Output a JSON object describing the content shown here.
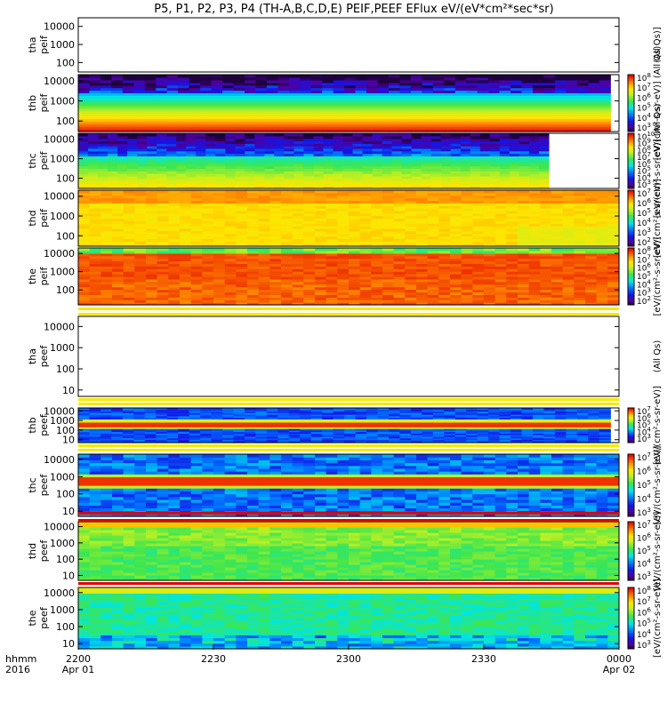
{
  "chart_data": {
    "type": "heatmap",
    "title": "P5, P1, P2, P3, P4 (TH-A,B,C,D,E) PEIF,PEEF EFlux eV/(eV*cm²*sec*sr)",
    "x_ticks": [
      "2200",
      "2230",
      "2300",
      "2330",
      "0000"
    ],
    "x_dates": [
      "Apr 01",
      "",
      "",
      "",
      "Apr 02"
    ],
    "x_axis_labels": [
      "hhmm",
      "2016"
    ],
    "panels": [
      {
        "label1": "tha",
        "label2": "peif",
        "yticks": [
          "10000",
          "1000",
          "100"
        ],
        "ymin": 30,
        "ymax": 30000,
        "data_end": 0.0,
        "profile": "empty",
        "cb_ticks": [],
        "cb_label": "(All Qs)]"
      },
      {
        "label1": "thb",
        "label2": "peif",
        "yticks": [
          "10000",
          "1000",
          "100"
        ],
        "ymin": 30,
        "ymax": 20000,
        "data_end": 0.984,
        "profile": "thb_peif",
        "cb_ticks": [
          "10^8",
          "10^7",
          "10^6",
          "10^5",
          "10^4",
          "10^3"
        ],
        "cb_label": "[eV/(cm²-s-sr-eV)] (All Qs)"
      },
      {
        "label1": "thc",
        "label2": "peif",
        "yticks": [
          "10000",
          "1000",
          "100"
        ],
        "ymin": 30,
        "ymax": 20000,
        "data_end": 0.87,
        "profile": "thc_peif",
        "cb_ticks": [
          "10^10",
          "10^9",
          "10^8",
          "10^7",
          "10^6",
          "10^5",
          "10^4",
          "10^3"
        ],
        "cb_label": "[eV/(cm²-s-sr-eV)] (All Qs)"
      },
      {
        "label1": "thd",
        "label2": "peif",
        "yticks": [
          "10000",
          "1000",
          "100"
        ],
        "ymin": 30,
        "ymax": 20000,
        "data_end": 1.0,
        "profile": "thd_peif",
        "cb_ticks": [
          "10^7",
          "10^6",
          "10^5",
          "10^4",
          "10^3",
          "10^2"
        ],
        "cb_label": "[eV/(cm²-s-sr-eV)]"
      },
      {
        "label1": "the",
        "label2": "peif",
        "yticks": [
          "10000",
          "1000",
          "100"
        ],
        "ymin": 15,
        "ymax": 20000,
        "data_end": 1.0,
        "profile": "the_peif",
        "cb_ticks": [
          "10^8",
          "10^7",
          "10^6",
          "10^5",
          "10^4",
          "10^3",
          "10^2"
        ],
        "cb_label": "[eV/(cm²-s-sr-eV)]"
      },
      {
        "label1": "tha",
        "label2": "peef",
        "yticks": [
          "10000",
          "1000",
          "100",
          "10"
        ],
        "ymin": 5,
        "ymax": 30000,
        "data_end": 0.0,
        "profile": "empty",
        "cb_ticks": [],
        "cb_label": "(All Qs)"
      },
      {
        "label1": "thb",
        "label2": "peef",
        "yticks": [
          "10000",
          "1000",
          "100",
          "10"
        ],
        "ymin": 5,
        "ymax": 20000,
        "data_end": 0.984,
        "profile": "thb_peef",
        "cb_ticks": [
          "10^7",
          "10^6",
          "10^5",
          "10^4",
          "10^3"
        ],
        "cb_label": "[eV/(cm²-s-sr-eV)]"
      },
      {
        "label1": "thc",
        "label2": "peef",
        "yticks": [
          "10000",
          "1000",
          "100",
          "10"
        ],
        "ymin": 5,
        "ymax": 20000,
        "data_end": 1.0,
        "profile": "thc_peef",
        "cb_ticks": [
          "10^7",
          "10^6",
          "10^5",
          "10^4",
          "10^3"
        ],
        "cb_label": "[eV/(cm²-s-sr-eV)]"
      },
      {
        "label1": "thd",
        "label2": "peef",
        "yticks": [
          "10000",
          "1000",
          "100",
          "10"
        ],
        "ymin": 5,
        "ymax": 20000,
        "data_end": 1.0,
        "profile": "thd_peef",
        "cb_ticks": [
          "10^7",
          "10^6",
          "10^5",
          "10^4",
          "10^3"
        ],
        "cb_label": "[eV/(cm²-s-sr-eV)]"
      },
      {
        "label1": "the",
        "label2": "peef",
        "yticks": [
          "10000",
          "1000",
          "100",
          "10"
        ],
        "ymin": 5,
        "ymax": 20000,
        "data_end": 1.0,
        "profile": "the_peef",
        "cb_ticks": [
          "10^8",
          "10^7",
          "10^6",
          "10^5",
          "10^4",
          "10^3"
        ],
        "cb_label": "[eV/(cm²-s-sr-eV)]"
      }
    ]
  }
}
